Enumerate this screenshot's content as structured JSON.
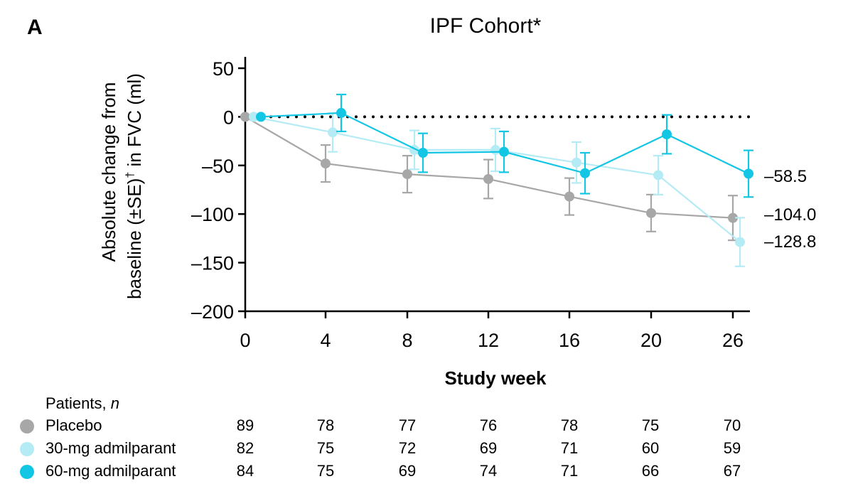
{
  "panel_letter": "A",
  "chart_data": {
    "type": "line",
    "title": "IPF Cohort*",
    "xlabel": "Study week",
    "ylabel_line1": "Absolute change from",
    "ylabel_line2_pre": "baseline (±SE)",
    "ylabel_line2_sup": "†",
    "ylabel_line2_post": " in FVC (ml)",
    "x_ticks": [
      "0",
      "4",
      "8",
      "12",
      "16",
      "20",
      "26"
    ],
    "y_ticks": [
      50,
      0,
      -50,
      -100,
      -150,
      -200
    ],
    "y_tick_labels": [
      "50",
      "0",
      "–50",
      "–100",
      "–150",
      "–200"
    ],
    "ylim": [
      -200,
      50
    ],
    "reference_line": 0,
    "series": [
      {
        "name": "Placebo",
        "color": "#a7a7a7",
        "values": [
          0,
          -48,
          -59,
          -64,
          -82,
          -99,
          -104
        ],
        "se": [
          0,
          19,
          19,
          20,
          19,
          19,
          23
        ],
        "end_label": "–104.0"
      },
      {
        "name": "30-mg admilparant",
        "color": "#b4ebf4",
        "values": [
          0,
          -16,
          -34,
          -34,
          -47,
          -60,
          -128.8
        ],
        "se": [
          0,
          20,
          20,
          22,
          21,
          20,
          25
        ],
        "end_label": "–128.8"
      },
      {
        "name": "60-mg admilparant",
        "color": "#12c6e4",
        "values": [
          0,
          4,
          -37,
          -36,
          -58,
          -18,
          -58.5
        ],
        "se": [
          0,
          19,
          20,
          21,
          21,
          20,
          24
        ],
        "end_label": "–58.5"
      }
    ]
  },
  "patients": {
    "heading_prefix": "Patients, ",
    "heading_n": "n",
    "rows": [
      {
        "label": "Placebo",
        "color": "#a7a7a7",
        "counts": [
          "89",
          "78",
          "77",
          "76",
          "78",
          "75",
          "70"
        ]
      },
      {
        "label": "30-mg admilparant",
        "color": "#b4ebf4",
        "counts": [
          "82",
          "75",
          "72",
          "69",
          "71",
          "60",
          "59"
        ]
      },
      {
        "label": "60-mg admilparant",
        "color": "#12c6e4",
        "counts": [
          "84",
          "75",
          "69",
          "74",
          "71",
          "66",
          "67"
        ]
      }
    ]
  }
}
